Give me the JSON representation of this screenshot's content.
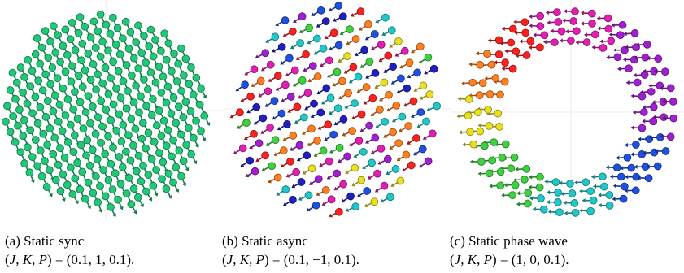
{
  "panels": [
    {
      "id": "a",
      "caption": "(a) Static sync",
      "params": "(J, K, P) = (0.1, 1, 0.1).",
      "J": "0.1",
      "K": "1",
      "P": "0.1",
      "arrangement": "disk",
      "pattern": "synchronized",
      "colors": [
        "#20c878"
      ]
    },
    {
      "id": "b",
      "caption": "(b) Static async",
      "params": "(J, K, P) = (0.1, −1, 0.1).",
      "J": "0.1",
      "K": "−1",
      "P": "0.1",
      "arrangement": "disk",
      "pattern": "asynchronous",
      "colors": [
        "#ff2020",
        "#ff8020",
        "#e8e020",
        "#40d040",
        "#20c8c8",
        "#2050e0",
        "#2020c0",
        "#a020d0",
        "#e020b0"
      ]
    },
    {
      "id": "c",
      "caption": "(c) Static phase wave",
      "params": "(J, K, P) = (1, 0, 0.1).",
      "J": "1",
      "K": "0",
      "P": "0.1",
      "arrangement": "annulus",
      "pattern": "phase-wave",
      "colors": [
        "#ff2020",
        "#ff8020",
        "#e8e020",
        "#40d040",
        "#20c8c8",
        "#2050e0",
        "#a020d0",
        "#e020b0"
      ]
    }
  ]
}
